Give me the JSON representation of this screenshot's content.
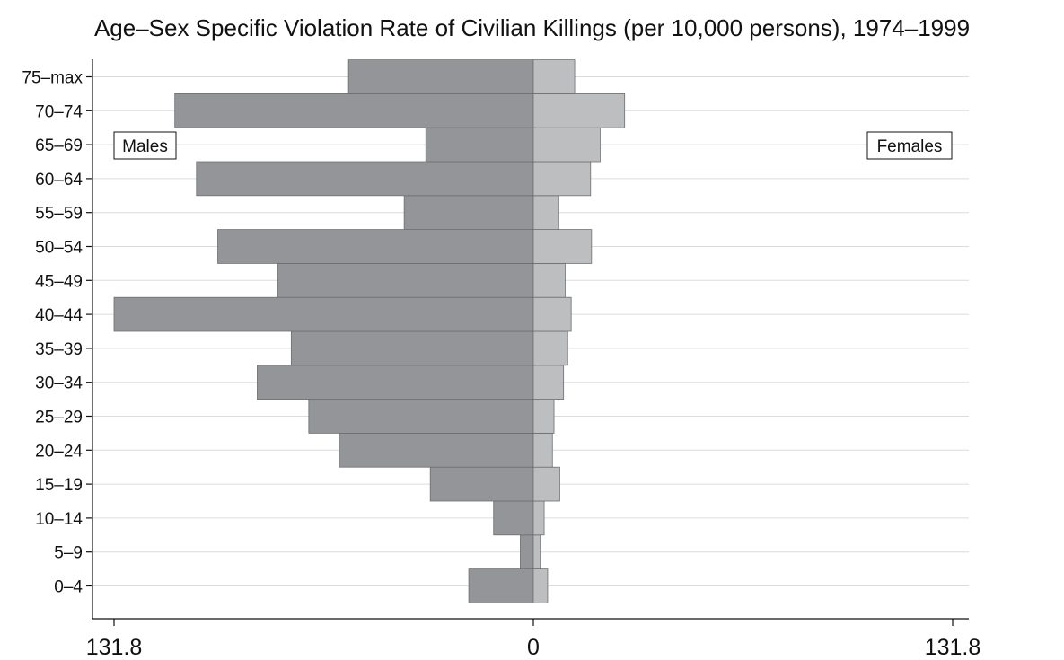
{
  "chart_data": {
    "type": "bar",
    "orientation": "horizontal",
    "layout": "population-pyramid",
    "title": "Age–Sex Specific Violation Rate of Civilian Killings (per 10,000 persons), 1974–1999",
    "categories": [
      "0–4",
      "5–9",
      "10–14",
      "15–19",
      "20–24",
      "25–29",
      "30–34",
      "35–39",
      "40–44",
      "45–49",
      "50–54",
      "55–59",
      "60–64",
      "65–69",
      "70–74",
      "75–max"
    ],
    "series": [
      {
        "name": "Males",
        "side": "left",
        "color": "#939598",
        "values": [
          20.3,
          4.1,
          12.5,
          32.4,
          61.0,
          70.6,
          86.8,
          76.1,
          131.8,
          80.3,
          99.2,
          40.6,
          105.9,
          33.8,
          112.7,
          58.1
        ]
      },
      {
        "name": "Females",
        "side": "right",
        "color": "#bcbec0",
        "values": [
          4.5,
          2.2,
          3.4,
          8.3,
          6.0,
          6.5,
          9.5,
          10.8,
          11.9,
          10.0,
          18.3,
          8.0,
          18.0,
          21.0,
          28.7,
          13.0
        ]
      }
    ],
    "xlim": [
      -131.8,
      131.8
    ],
    "xticks": [
      {
        "value": -131.8,
        "label": "131.8"
      },
      {
        "value": 0,
        "label": "0"
      },
      {
        "value": 131.8,
        "label": "131.8"
      }
    ],
    "grid": true,
    "legend": {
      "males_label": "Males",
      "females_label": "Females",
      "placement": "inside-top"
    },
    "colors": {
      "bar_edge": "#6d6e71",
      "grid": "#dcdcdc",
      "axis": "#111111"
    }
  }
}
